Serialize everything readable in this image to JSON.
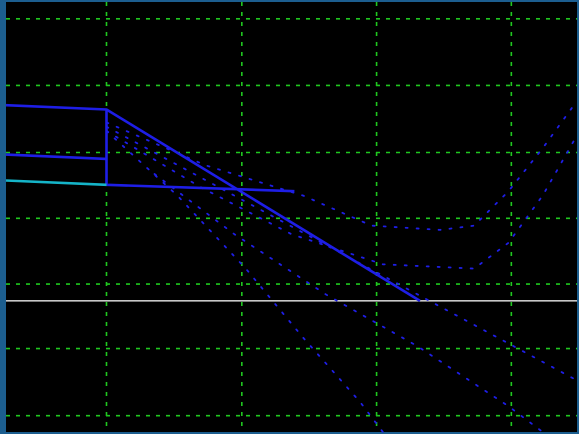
{
  "chart_data": {
    "type": "line",
    "title": "",
    "xlabel": "",
    "ylabel": "",
    "xlim": [
      0,
      100
    ],
    "ylim": [
      0,
      100
    ],
    "grid": true,
    "grid_x": [
      17.6,
      41.3,
      64.9,
      88.5
    ],
    "grid_y": [
      3.8,
      19.4,
      34.4,
      49.7,
      65.0,
      80.6,
      96.1
    ],
    "reference_line_y": 30.5,
    "series": [
      {
        "style": "solid",
        "color": "#1e1ee6",
        "points": [
          [
            0,
            76
          ],
          [
            17.6,
            75
          ],
          [
            17.6,
            57.5
          ],
          [
            40,
            56.5
          ],
          [
            50.5,
            56
          ]
        ]
      },
      {
        "style": "solid",
        "color": "#1e1ee6",
        "points": [
          [
            0,
            64.5
          ],
          [
            17.6,
            63.5
          ]
        ]
      },
      {
        "style": "solid",
        "color": "#1e1ee6",
        "points": [
          [
            17.6,
            75
          ],
          [
            72.5,
            30.5
          ]
        ]
      },
      {
        "style": "solid",
        "color": "#15b4c8",
        "points": [
          [
            0,
            58.5
          ],
          [
            17.6,
            57.5
          ]
        ]
      },
      {
        "style": "dotted",
        "color": "#1e1ee6",
        "points": [
          [
            17.6,
            72
          ],
          [
            35,
            62
          ],
          [
            52,
            55
          ],
          [
            64,
            48
          ],
          [
            76,
            47
          ],
          [
            82,
            48
          ],
          [
            88,
            56
          ],
          [
            94,
            66
          ],
          [
            100,
            77
          ]
        ]
      },
      {
        "style": "dotted",
        "color": "#1e1ee6",
        "points": [
          [
            17.6,
            70
          ],
          [
            34,
            57
          ],
          [
            50,
            46
          ],
          [
            66,
            39
          ],
          [
            82,
            38
          ],
          [
            88,
            44
          ],
          [
            94,
            55
          ],
          [
            100,
            69
          ]
        ]
      },
      {
        "style": "dotted",
        "color": "#1e1ee6",
        "points": [
          [
            17.6,
            71
          ],
          [
            100,
            12
          ]
        ]
      },
      {
        "style": "dotted",
        "color": "#1e1ee6",
        "points": [
          [
            17.6,
            70
          ],
          [
            30,
            55
          ],
          [
            42,
            38
          ],
          [
            52,
            22
          ],
          [
            62,
            7
          ],
          [
            66,
            0
          ]
        ]
      },
      {
        "style": "dotted",
        "color": "#1e1ee6",
        "points": [
          [
            26,
            60
          ],
          [
            40,
            46
          ],
          [
            56,
            32
          ],
          [
            72,
            20
          ],
          [
            88,
            6
          ],
          [
            94,
            0
          ]
        ]
      }
    ],
    "colors": {
      "background": "#000000",
      "frame": "#1c5e8f",
      "grid": "#1fc81f",
      "reference_line": "#c8c8c8"
    }
  }
}
